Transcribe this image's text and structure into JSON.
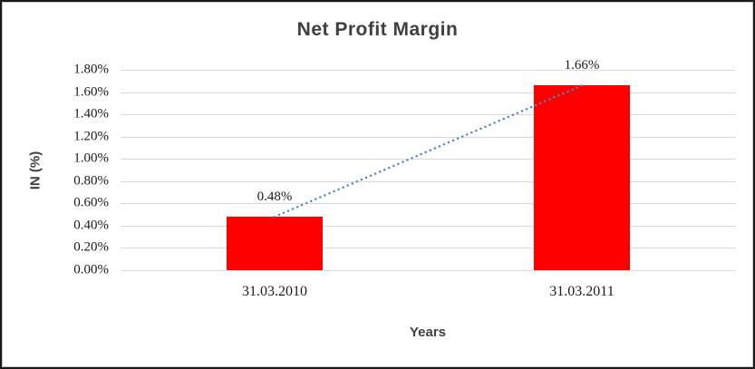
{
  "colors": {
    "bar": "#FF0000",
    "trendline": "#4A86C8",
    "gridline": "#D9D9D9",
    "heading_text": "#3F3F3F",
    "label_text": "#1A1A1A",
    "frame_outer": "#1A1A1A",
    "frame_inner": "#C9C9C9"
  },
  "chart_data": {
    "type": "bar",
    "title": "Net Profit Margin",
    "xlabel": "Years",
    "ylabel": "IN (%)",
    "categories": [
      "31.03.2010",
      "31.03.2011"
    ],
    "values": [
      0.48,
      1.66
    ],
    "data_labels": [
      "0.48%",
      "1.66%"
    ],
    "ylim": [
      0,
      1.8
    ],
    "ytick_step": 0.2,
    "ytick_labels_top_to_bottom": [
      "1.80%",
      "1.60%",
      "1.40%",
      "1.20%",
      "1.00%",
      "0.80%",
      "0.60%",
      "0.40%",
      "0.20%",
      "0.00%"
    ],
    "grid": true,
    "legend": false,
    "bar_color": "#FF0000",
    "trendline": {
      "type": "linear",
      "style": "dotted",
      "color": "#4A86C8",
      "from_value": 0.48,
      "to_value": 1.66
    }
  }
}
